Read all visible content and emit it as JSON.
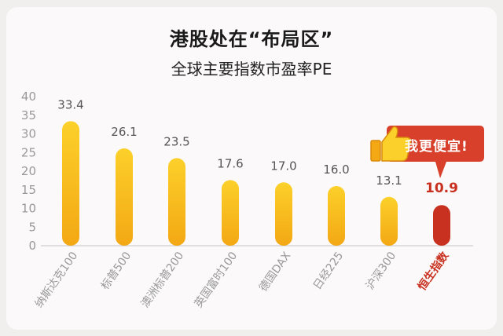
{
  "title": "港股处在“布局区”",
  "subtitle": "全球主要指数市盈率PE",
  "callout": {
    "text": "我更便宜!",
    "icon": "thumbs-up-icon"
  },
  "colors": {
    "bar_gold_top": "#fcd02a",
    "bar_gold_bottom": "#f3a814",
    "bar_highlight": "#c8311f",
    "callout_bg": "#d9402c",
    "axis_text": "#999999",
    "value_text": "#555555"
  },
  "chart_data": {
    "type": "bar",
    "categories": [
      "纳斯达克100",
      "标普500",
      "澳洲标普200",
      "英国富时100",
      "德国DAX",
      "日经225",
      "沪深300",
      "恒生指数"
    ],
    "values": [
      33.4,
      26.1,
      23.5,
      17.6,
      17.0,
      16.0,
      13.1,
      10.9
    ],
    "value_labels": [
      "33.4",
      "26.1",
      "23.5",
      "17.6",
      "17.0",
      "16.0",
      "13.1",
      "10.9"
    ],
    "highlight_index": 7,
    "ylim": [
      0,
      40
    ],
    "yticks": [
      "0",
      "5",
      "10",
      "15",
      "20",
      "25",
      "30",
      "35",
      "40"
    ],
    "grid": false,
    "legend": "none"
  }
}
